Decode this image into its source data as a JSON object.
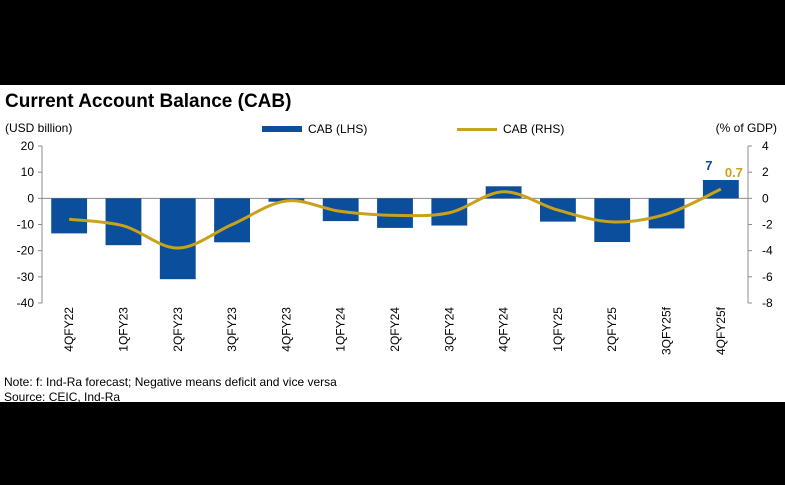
{
  "title": "Current Account Balance (CAB)",
  "left_axis_unit": "(USD billion)",
  "right_axis_unit": "(% of GDP)",
  "note": "Note: f: Ind-Ra forecast; Negative means deficit and vice versa",
  "source": "Source: CEIC, Ind-Ra",
  "colors": {
    "bar": "#0b4f9c",
    "line": "#c8a21a",
    "bar_label": "#0b4f9c",
    "line_label": "#c8a21a"
  },
  "chart_data": {
    "type": "bar",
    "categories": [
      "4QFY22",
      "1QFY23",
      "2QFY23",
      "3QFY23",
      "4QFY23",
      "1QFY24",
      "2QFY24",
      "3QFY24",
      "4QFY24",
      "1QFY25",
      "2QFY25",
      "3QFY25f",
      "4QFY25f"
    ],
    "series": [
      {
        "name": "CAB (LHS)",
        "type": "bar",
        "axis": "left",
        "values": [
          -13.4,
          -17.9,
          -30.9,
          -16.8,
          -1.3,
          -8.7,
          -11.3,
          -10.4,
          4.6,
          -8.9,
          -16.7,
          -11.5,
          7
        ]
      },
      {
        "name": "CAB (RHS)",
        "type": "line",
        "axis": "right",
        "values": [
          -1.6,
          -2.1,
          -3.8,
          -2.0,
          -0.2,
          -1.0,
          -1.3,
          -1.1,
          0.5,
          -0.9,
          -1.8,
          -1.2,
          0.7
        ]
      }
    ],
    "data_labels": [
      {
        "series": "CAB (LHS)",
        "category": "4QFY25f",
        "text": "7"
      },
      {
        "series": "CAB (RHS)",
        "category": "4QFY25f",
        "text": "0.7"
      }
    ],
    "left_axis": {
      "ylim": [
        -40,
        20
      ],
      "ticks": [
        20,
        10,
        0,
        -10,
        -20,
        -30,
        -40
      ]
    },
    "right_axis": {
      "ylim": [
        -8,
        4
      ],
      "ticks": [
        4,
        2,
        0,
        -2,
        -4,
        -6,
        -8
      ]
    },
    "legend_position": "top-center",
    "grid": false
  }
}
